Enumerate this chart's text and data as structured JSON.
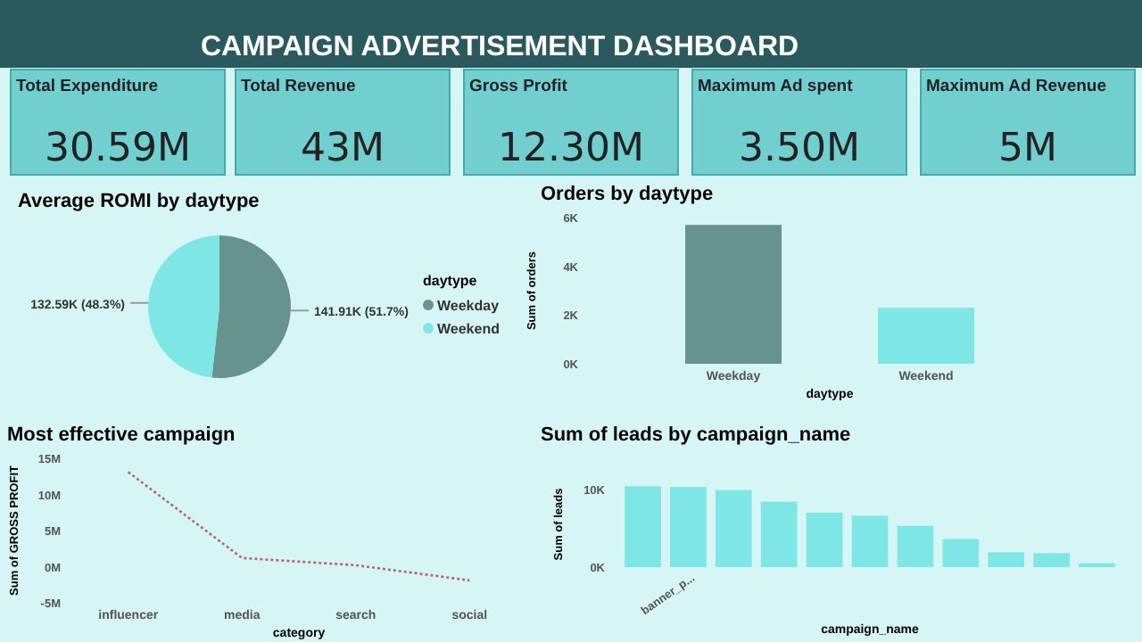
{
  "chart_data": [
    {
      "type": "other",
      "title": "CAMPAIGN ADVERTISEMENT DASHBOARD",
      "annotations": [
        "Total Expenditure",
        "30.59M",
        "Total Revenue",
        "43M",
        "Gross Profit",
        "12.30M",
        "Maximum Ad spent",
        "3.50M",
        "Maximum Ad Revenue",
        "5M"
      ]
    },
    {
      "type": "pie",
      "title": "Average ROMI by daytype",
      "categories": [
        "Weekday",
        "Weekend"
      ],
      "values": [
        141910,
        132590
      ],
      "colors": [
        "#66938e",
        "#7fe6e6"
      ],
      "value_labels": [
        "141.91K (51.7%)",
        "132.59K (48.3%)"
      ],
      "legend_title": "daytype",
      "legend": "right"
    },
    {
      "type": "bar",
      "title": "Orders by daytype",
      "categories": [
        "Weekday",
        "Weekend"
      ],
      "values": [
        5700,
        2300
      ],
      "colors": [
        "#66938e",
        "#7fe6e6"
      ],
      "xlabel": "daytype",
      "ylabel": "Sum of orders",
      "ylim": [
        0,
        6000
      ],
      "yticks": [
        {
          "value": 0,
          "label": "0K"
        },
        {
          "value": 2000,
          "label": "2K"
        },
        {
          "value": 4000,
          "label": "4K"
        },
        {
          "value": 6000,
          "label": "6K"
        }
      ]
    },
    {
      "type": "line",
      "title": "Most effective campaign",
      "categories": [
        "influencer",
        "media",
        "search",
        "social"
      ],
      "series": [
        {
          "color": "#c0606e",
          "values": [
            13100000,
            1200000,
            200000,
            -1900000
          ]
        }
      ],
      "line_style": "dotted",
      "xlabel": "category",
      "ylabel": "Sum of GROSS PROFIT",
      "ylim": [
        -5000000,
        15000000
      ],
      "yticks": [
        {
          "value": -5000000,
          "label": "-5M"
        },
        {
          "value": 0,
          "label": "0M"
        },
        {
          "value": 5000000,
          "label": "5M"
        },
        {
          "value": 10000000,
          "label": "10M"
        },
        {
          "value": 15000000,
          "label": "15M"
        }
      ]
    },
    {
      "type": "bar",
      "title": "Sum of leads by campaign_name",
      "categories": [
        null,
        "banner_p...",
        null,
        null,
        null,
        null,
        null,
        null,
        null,
        null,
        null
      ],
      "values": [
        10400,
        10300,
        9900,
        8400,
        7000,
        6600,
        5300,
        3600,
        1900,
        1800,
        500
      ],
      "colors": [
        "#7fe6e6",
        "#7fe6e6",
        "#7fe6e6",
        "#7fe6e6",
        "#7fe6e6",
        "#7fe6e6",
        "#7fe6e6",
        "#7fe6e6",
        "#7fe6e6",
        "#7fe6e6",
        "#7fe6e6"
      ],
      "xlabel": "campaign_name",
      "ylabel": "Sum of leads",
      "ylim": [
        0,
        11000
      ],
      "yticks": [
        {
          "value": 0,
          "label": "0K"
        },
        {
          "value": 10000,
          "label": "10K"
        }
      ]
    }
  ]
}
